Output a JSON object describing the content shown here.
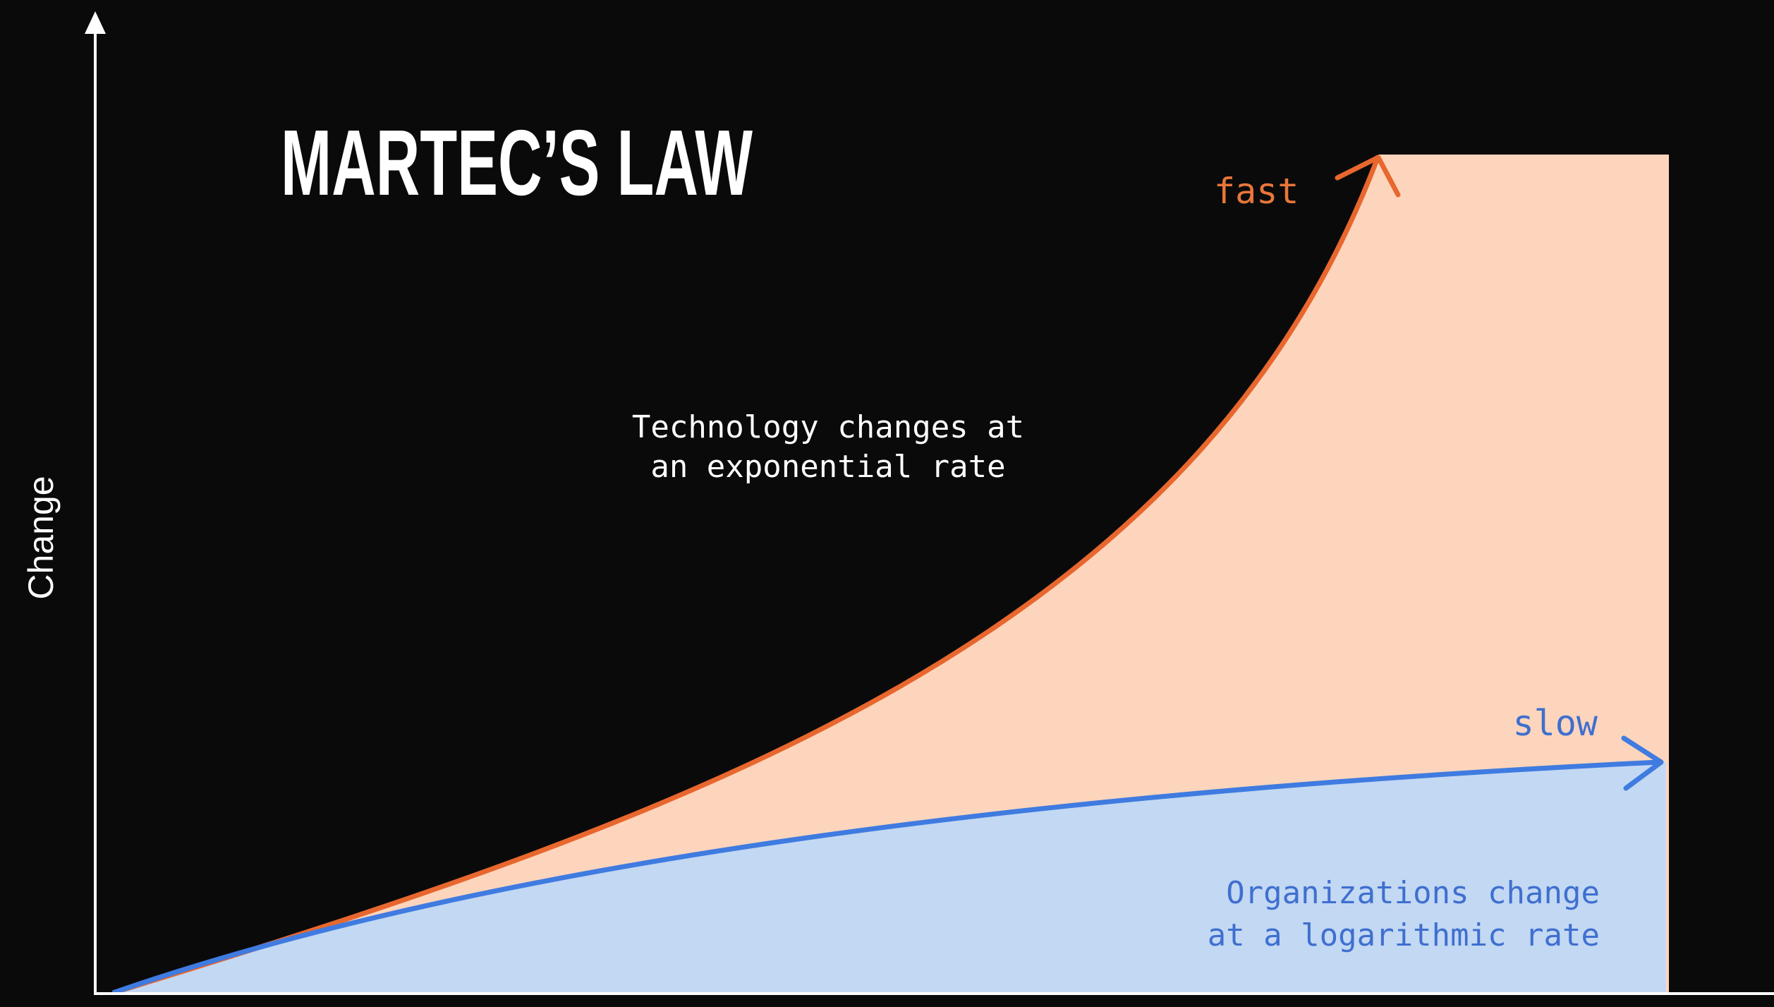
{
  "title": "MARTEC’S LAW",
  "y_axis_label": "Change",
  "technology": {
    "label": "fast",
    "description": [
      "Technology changes at",
      "an exponential rate"
    ]
  },
  "organizations": {
    "label": "slow",
    "description": [
      "Organizations change",
      "at a logarithmic rate"
    ]
  }
}
